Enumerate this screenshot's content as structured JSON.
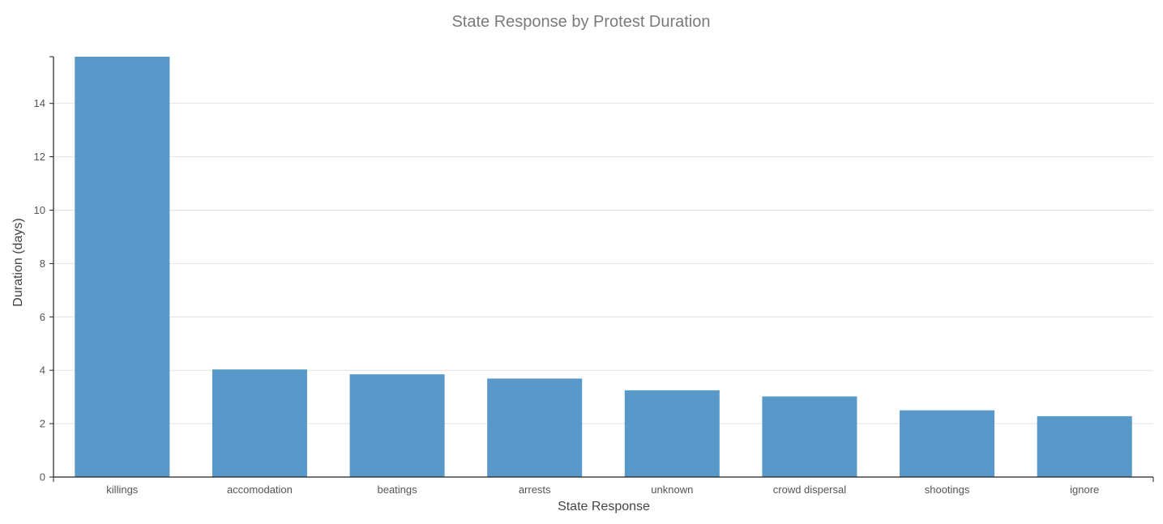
{
  "chart_data": {
    "type": "bar",
    "title": "State Response by Protest Duration",
    "xlabel": "State Response",
    "ylabel": "Duration (days)",
    "categories": [
      "killings",
      "accomodation",
      "beatings",
      "arrests",
      "unknown",
      "crowd dispersal",
      "shootings",
      "ignore"
    ],
    "values": [
      15.75,
      4.03,
      3.85,
      3.69,
      3.25,
      3.02,
      2.5,
      2.28
    ],
    "ylim": [
      0,
      15.75
    ],
    "yticks": [
      0,
      2,
      4,
      6,
      8,
      10,
      12,
      14
    ],
    "grid": true,
    "bar_color": "#4a90c4"
  }
}
